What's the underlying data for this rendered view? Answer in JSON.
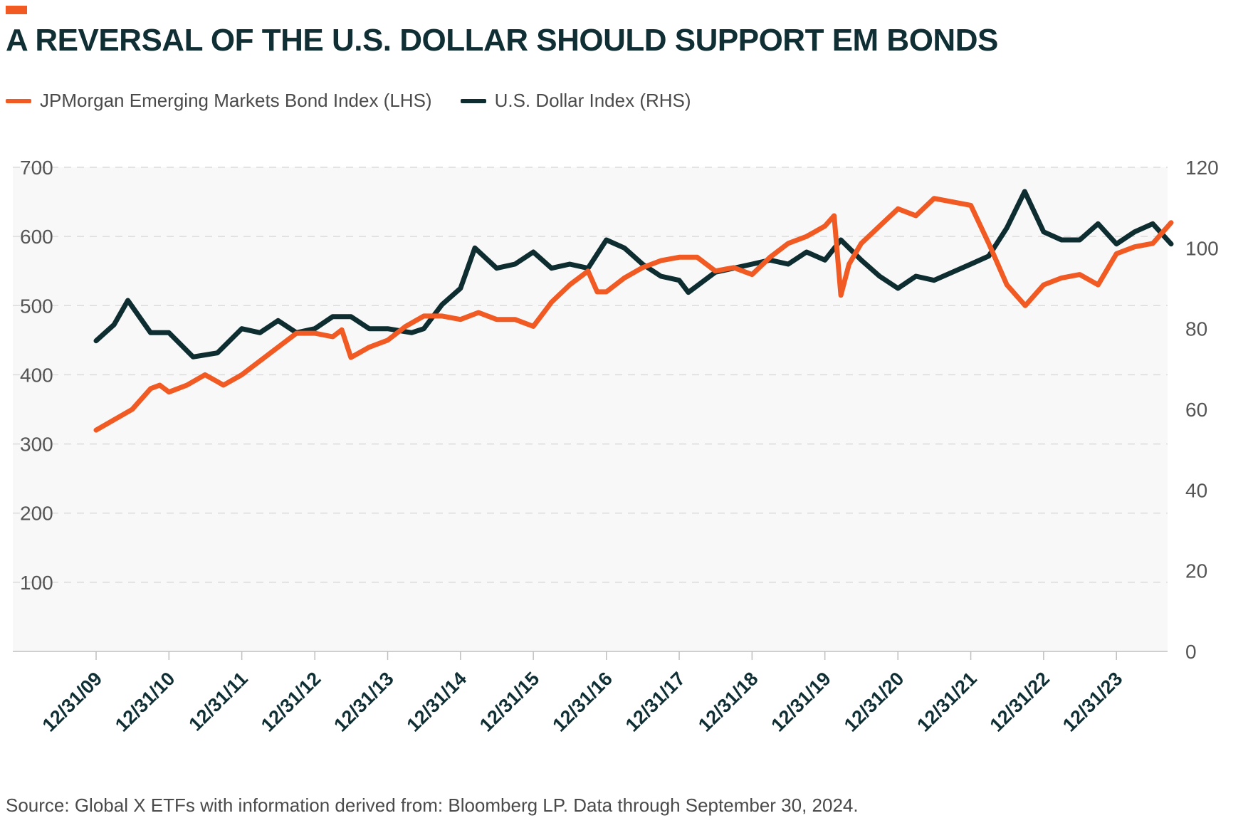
{
  "header": {
    "title": "A REVERSAL OF THE U.S. DOLLAR SHOULD SUPPORT EM BONDS",
    "accent_color": "#f15a22"
  },
  "footer": {
    "source": "Source: Global X ETFs with information derived from: Bloomberg LP. Data through September 30, 2024."
  },
  "chart_data": {
    "type": "line",
    "title": "A REVERSAL OF THE U.S. DOLLAR SHOULD SUPPORT EM BONDS",
    "x_tick_labels": [
      "12/31/09",
      "12/31/10",
      "12/31/11",
      "12/31/12",
      "12/31/13",
      "12/31/14",
      "12/31/15",
      "12/31/16",
      "12/31/17",
      "12/31/18",
      "12/31/19",
      "12/31/20",
      "12/31/21",
      "12/31/22",
      "12/31/23"
    ],
    "x_range": [
      "2009-12-31",
      "2024-09-30"
    ],
    "y_left": {
      "ylim": [
        0,
        700
      ],
      "ticks": [
        100,
        200,
        300,
        400,
        500,
        600,
        700
      ]
    },
    "y_right": {
      "ylim": [
        0,
        120
      ],
      "ticks": [
        0,
        20,
        40,
        60,
        80,
        100,
        120
      ]
    },
    "grid": "horizontal dashed",
    "legend_position": "top-left",
    "series": [
      {
        "name": "JPMorgan Emerging Markets Bond Index (LHS)",
        "axis": "left",
        "color": "#f15a22",
        "points": [
          [
            "2009-12-31",
            320
          ],
          [
            "2010-03-31",
            335
          ],
          [
            "2010-06-30",
            350
          ],
          [
            "2010-09-30",
            380
          ],
          [
            "2010-11-15",
            385
          ],
          [
            "2010-12-31",
            375
          ],
          [
            "2011-03-31",
            385
          ],
          [
            "2011-06-30",
            400
          ],
          [
            "2011-08-31",
            390
          ],
          [
            "2011-09-30",
            385
          ],
          [
            "2011-12-31",
            400
          ],
          [
            "2012-03-31",
            420
          ],
          [
            "2012-06-30",
            440
          ],
          [
            "2012-09-30",
            460
          ],
          [
            "2012-12-31",
            460
          ],
          [
            "2013-03-31",
            455
          ],
          [
            "2013-05-15",
            465
          ],
          [
            "2013-06-30",
            425
          ],
          [
            "2013-09-30",
            440
          ],
          [
            "2013-12-31",
            450
          ],
          [
            "2014-03-31",
            470
          ],
          [
            "2014-06-30",
            485
          ],
          [
            "2014-09-30",
            485
          ],
          [
            "2014-12-31",
            480
          ],
          [
            "2015-03-31",
            490
          ],
          [
            "2015-06-30",
            480
          ],
          [
            "2015-09-30",
            480
          ],
          [
            "2015-12-31",
            470
          ],
          [
            "2016-03-31",
            505
          ],
          [
            "2016-06-30",
            530
          ],
          [
            "2016-09-30",
            550
          ],
          [
            "2016-11-15",
            520
          ],
          [
            "2016-12-31",
            520
          ],
          [
            "2017-03-31",
            540
          ],
          [
            "2017-06-30",
            555
          ],
          [
            "2017-09-30",
            565
          ],
          [
            "2017-12-31",
            570
          ],
          [
            "2018-03-31",
            570
          ],
          [
            "2018-06-30",
            550
          ],
          [
            "2018-09-30",
            555
          ],
          [
            "2018-12-31",
            545
          ],
          [
            "2019-03-31",
            570
          ],
          [
            "2019-06-30",
            590
          ],
          [
            "2019-09-30",
            600
          ],
          [
            "2019-12-31",
            615
          ],
          [
            "2020-02-15",
            630
          ],
          [
            "2020-03-20",
            515
          ],
          [
            "2020-04-30",
            560
          ],
          [
            "2020-06-30",
            590
          ],
          [
            "2020-09-30",
            615
          ],
          [
            "2020-12-31",
            640
          ],
          [
            "2021-03-31",
            630
          ],
          [
            "2021-06-30",
            655
          ],
          [
            "2021-09-30",
            650
          ],
          [
            "2021-12-31",
            645
          ],
          [
            "2022-03-31",
            590
          ],
          [
            "2022-06-30",
            530
          ],
          [
            "2022-09-30",
            500
          ],
          [
            "2022-12-31",
            530
          ],
          [
            "2023-03-31",
            540
          ],
          [
            "2023-06-30",
            545
          ],
          [
            "2023-09-30",
            530
          ],
          [
            "2023-12-31",
            575
          ],
          [
            "2024-03-31",
            585
          ],
          [
            "2024-06-30",
            590
          ],
          [
            "2024-09-30",
            620
          ]
        ]
      },
      {
        "name": "U.S. Dollar Index (RHS)",
        "axis": "right",
        "color": "#0d2d30",
        "points": [
          [
            "2009-12-31",
            77
          ],
          [
            "2010-03-31",
            81
          ],
          [
            "2010-06-08",
            87
          ],
          [
            "2010-09-30",
            79
          ],
          [
            "2010-12-31",
            79
          ],
          [
            "2011-05-01",
            73
          ],
          [
            "2011-08-31",
            74
          ],
          [
            "2011-12-31",
            80
          ],
          [
            "2012-03-31",
            79
          ],
          [
            "2012-06-30",
            82
          ],
          [
            "2012-09-30",
            79
          ],
          [
            "2012-12-31",
            80
          ],
          [
            "2013-03-31",
            83
          ],
          [
            "2013-06-30",
            83
          ],
          [
            "2013-09-30",
            80
          ],
          [
            "2013-12-31",
            80
          ],
          [
            "2014-04-30",
            79
          ],
          [
            "2014-06-30",
            80
          ],
          [
            "2014-09-30",
            86
          ],
          [
            "2014-12-31",
            90
          ],
          [
            "2015-03-13",
            100
          ],
          [
            "2015-06-30",
            95
          ],
          [
            "2015-09-30",
            96
          ],
          [
            "2015-12-31",
            99
          ],
          [
            "2016-03-31",
            95
          ],
          [
            "2016-06-30",
            96
          ],
          [
            "2016-09-30",
            95
          ],
          [
            "2016-12-31",
            102
          ],
          [
            "2017-03-31",
            100
          ],
          [
            "2017-06-30",
            96
          ],
          [
            "2017-09-30",
            93
          ],
          [
            "2017-12-31",
            92
          ],
          [
            "2018-02-15",
            89
          ],
          [
            "2018-06-30",
            94
          ],
          [
            "2018-09-30",
            95
          ],
          [
            "2018-12-31",
            96
          ],
          [
            "2019-03-31",
            97
          ],
          [
            "2019-06-30",
            96
          ],
          [
            "2019-09-30",
            99
          ],
          [
            "2019-12-31",
            97
          ],
          [
            "2020-03-20",
            102
          ],
          [
            "2020-06-30",
            97
          ],
          [
            "2020-09-30",
            93
          ],
          [
            "2020-12-31",
            90
          ],
          [
            "2021-03-31",
            93
          ],
          [
            "2021-06-30",
            92
          ],
          [
            "2021-09-30",
            94
          ],
          [
            "2021-12-31",
            96
          ],
          [
            "2022-03-31",
            98
          ],
          [
            "2022-06-30",
            105
          ],
          [
            "2022-09-27",
            114
          ],
          [
            "2022-12-31",
            104
          ],
          [
            "2023-03-31",
            102
          ],
          [
            "2023-06-30",
            102
          ],
          [
            "2023-09-30",
            106
          ],
          [
            "2023-12-31",
            101
          ],
          [
            "2024-03-31",
            104
          ],
          [
            "2024-06-30",
            106
          ],
          [
            "2024-09-30",
            101
          ]
        ]
      }
    ]
  }
}
